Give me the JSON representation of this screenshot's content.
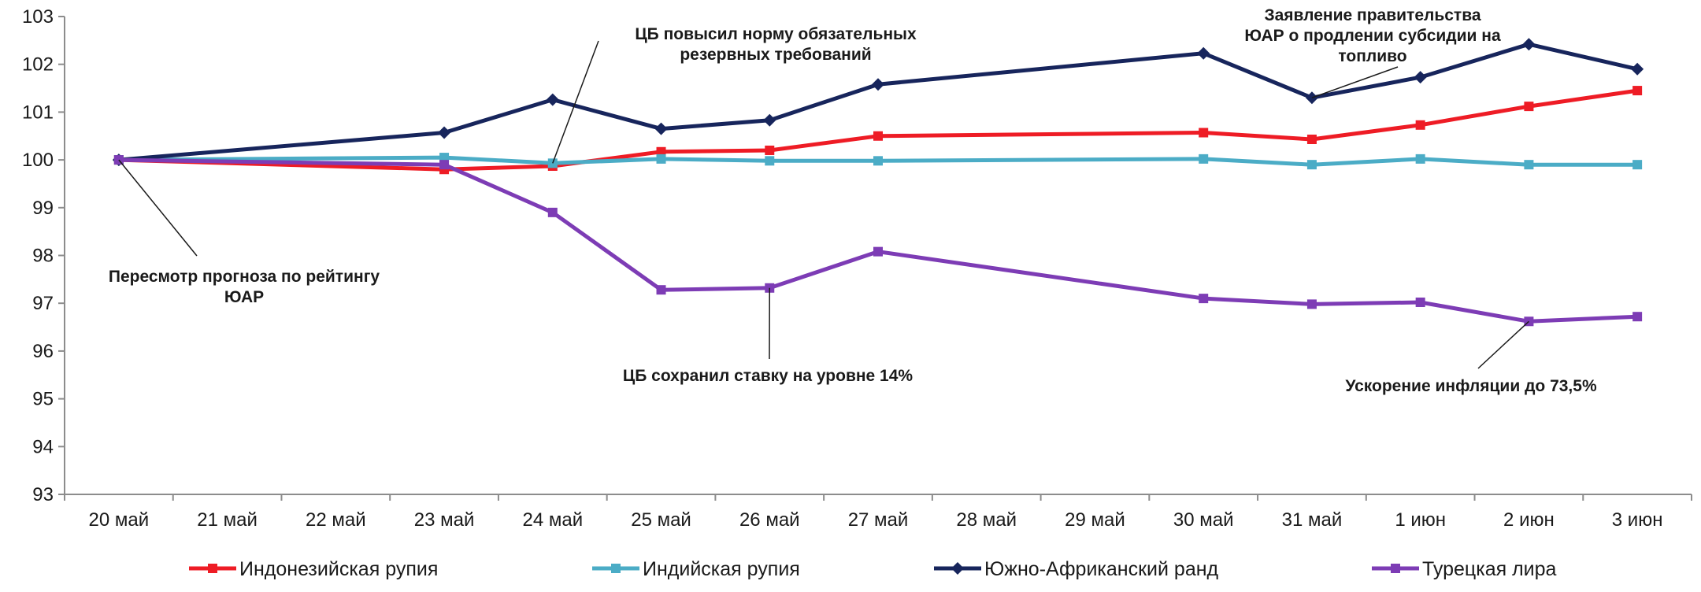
{
  "chart_data": {
    "type": "line",
    "title": "",
    "xlabel": "",
    "ylabel": "",
    "categories": [
      "20 май",
      "21 май",
      "22 май",
      "23 май",
      "24 май",
      "25 май",
      "26 май",
      "27 май",
      "28 май",
      "29 май",
      "30 май",
      "31 май",
      "1 июн",
      "2 июн",
      "3 июн"
    ],
    "ylim": [
      93,
      103
    ],
    "yticks": [
      93,
      94,
      95,
      96,
      97,
      98,
      99,
      100,
      101,
      102,
      103
    ],
    "grid": false,
    "legend_position": "bottom",
    "series": [
      {
        "name": "Индонезийская рупия",
        "color": "#ee1c25",
        "marker": "square",
        "points": [
          {
            "x": "20 май",
            "y": 100.0
          },
          {
            "x": "23 май",
            "y": 99.8
          },
          {
            "x": "24 май",
            "y": 99.87
          },
          {
            "x": "25 май",
            "y": 100.17
          },
          {
            "x": "26 май",
            "y": 100.2
          },
          {
            "x": "27 май",
            "y": 100.5
          },
          {
            "x": "30 май",
            "y": 100.57
          },
          {
            "x": "31 май",
            "y": 100.43
          },
          {
            "x": "1 июн",
            "y": 100.73
          },
          {
            "x": "2 июн",
            "y": 101.12
          },
          {
            "x": "3 июн",
            "y": 101.45
          }
        ]
      },
      {
        "name": "Индийская рупия",
        "color": "#4bacc6",
        "marker": "square",
        "points": [
          {
            "x": "20 май",
            "y": 100.0
          },
          {
            "x": "23 май",
            "y": 100.05
          },
          {
            "x": "24 май",
            "y": 99.93
          },
          {
            "x": "25 май",
            "y": 100.02
          },
          {
            "x": "26 май",
            "y": 99.98
          },
          {
            "x": "27 май",
            "y": 99.98
          },
          {
            "x": "30 май",
            "y": 100.02
          },
          {
            "x": "31 май",
            "y": 99.9
          },
          {
            "x": "1 июн",
            "y": 100.02
          },
          {
            "x": "2 июн",
            "y": 99.9
          },
          {
            "x": "3 июн",
            "y": 99.9
          }
        ]
      },
      {
        "name": "Южно-Африканский ранд",
        "color": "#17255c",
        "marker": "diamond",
        "points": [
          {
            "x": "20 май",
            "y": 100.0
          },
          {
            "x": "23 май",
            "y": 100.57
          },
          {
            "x": "24 май",
            "y": 101.26
          },
          {
            "x": "25 май",
            "y": 100.65
          },
          {
            "x": "26 май",
            "y": 100.83
          },
          {
            "x": "27 май",
            "y": 101.58
          },
          {
            "x": "30 май",
            "y": 102.23
          },
          {
            "x": "31 май",
            "y": 101.3
          },
          {
            "x": "1 июн",
            "y": 101.73
          },
          {
            "x": "2 июн",
            "y": 102.42
          },
          {
            "x": "3 июн",
            "y": 101.9
          }
        ]
      },
      {
        "name": "Турецкая лира",
        "color": "#7d3cb5",
        "marker": "square",
        "points": [
          {
            "x": "20 май",
            "y": 100.0
          },
          {
            "x": "23 май",
            "y": 99.9
          },
          {
            "x": "24 май",
            "y": 98.9
          },
          {
            "x": "25 май",
            "y": 97.28
          },
          {
            "x": "26 май",
            "y": 97.32
          },
          {
            "x": "27 май",
            "y": 98.08
          },
          {
            "x": "30 май",
            "y": 97.1
          },
          {
            "x": "31 май",
            "y": 96.98
          },
          {
            "x": "1 июн",
            "y": 97.02
          },
          {
            "x": "2 июн",
            "y": 96.62
          },
          {
            "x": "3 июн",
            "y": 96.72
          }
        ]
      }
    ],
    "annotations": [
      {
        "id": "rating",
        "lines": [
          "Пересмотр прогноза по рейтингу",
          "ЮАР"
        ],
        "target": {
          "x": "20 май",
          "y": 100.0
        }
      },
      {
        "id": "reserve",
        "lines": [
          "ЦБ повысил норму обязательных",
          "резервных требований"
        ],
        "target": {
          "x": "24 май",
          "y": 99.93
        }
      },
      {
        "id": "rate",
        "lines": [
          "ЦБ сохранил ставку на уровне 14%"
        ],
        "target": {
          "x": "26 май",
          "y": 97.32
        }
      },
      {
        "id": "subsidy",
        "lines": [
          "Заявление  правительства",
          "ЮАР о продлении субсидии на",
          "топливо"
        ],
        "target": {
          "x": "31 май",
          "y": 101.3
        }
      },
      {
        "id": "inflation",
        "lines": [
          "Ускорение инфляции до 73,5%"
        ],
        "target": {
          "x": "2 июн",
          "y": 96.62
        }
      }
    ]
  }
}
